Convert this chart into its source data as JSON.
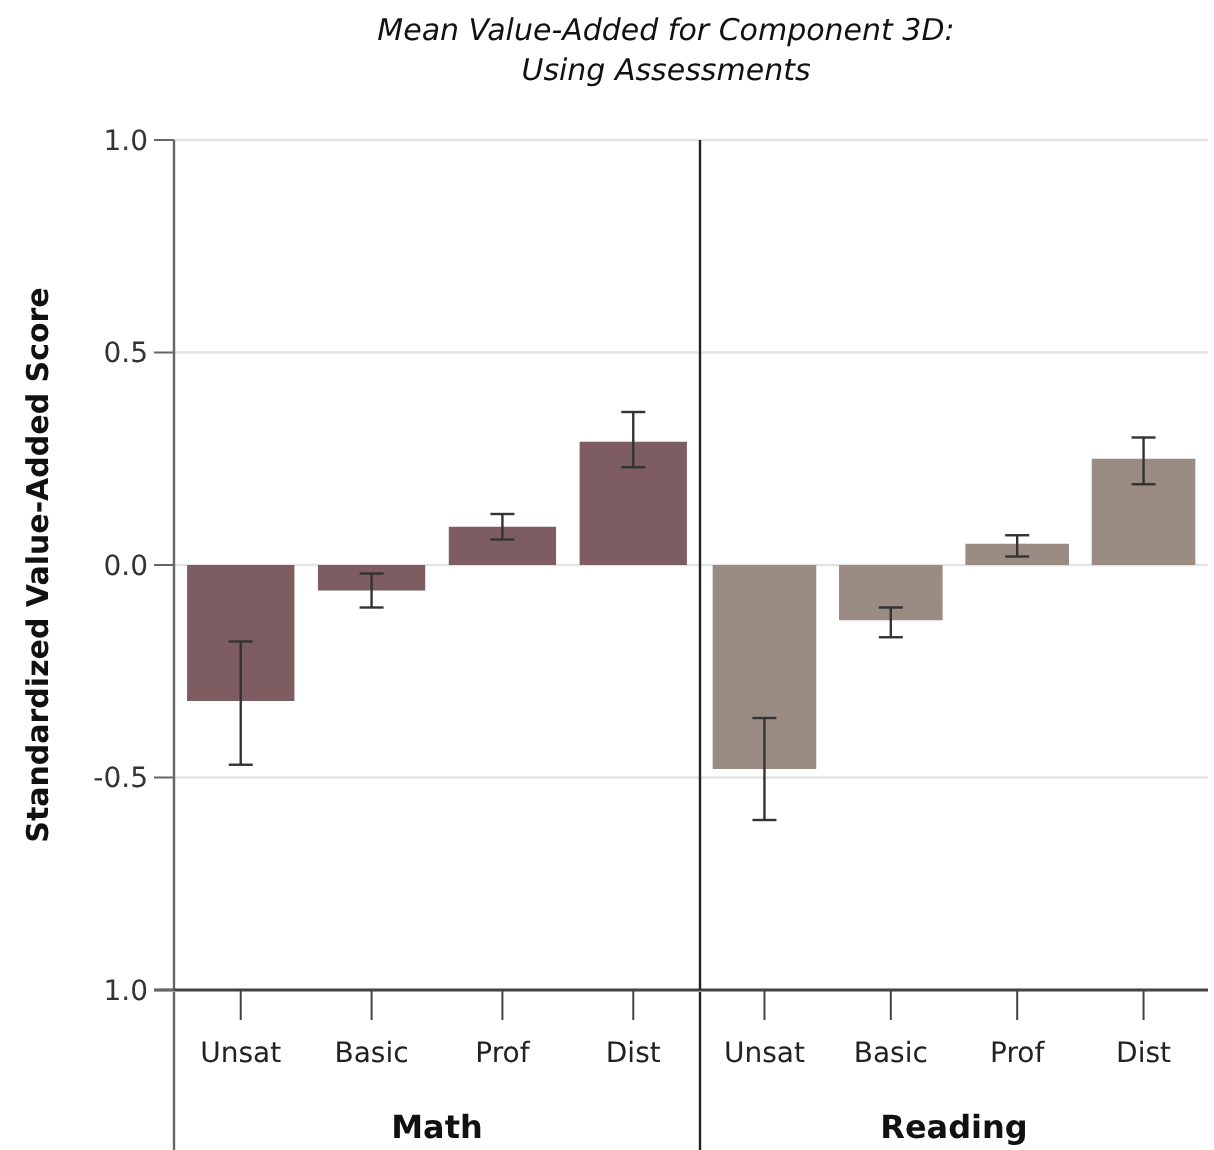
{
  "chart_data": [
    {
      "type": "bar",
      "title": "Mean Value-Added for Component 3D:\nUsing Assessments",
      "ylabel": "Standardized Value-Added Score",
      "xlabel": "Math",
      "categories": [
        "Unsat",
        "Basic",
        "Prof",
        "Dist"
      ],
      "values": [
        -0.32,
        -0.06,
        0.09,
        0.29
      ],
      "errors": [
        [
          -0.47,
          -0.18
        ],
        [
          -0.1,
          -0.02
        ],
        [
          0.06,
          0.12
        ],
        [
          0.23,
          0.36
        ]
      ],
      "color": "#7d5c62",
      "ylim": [
        -1,
        1
      ],
      "yticks": [
        {
          "value": -1,
          "label": "1.0"
        },
        -0.5,
        {
          "value": 0,
          "label": "0.0"
        },
        0.5,
        {
          "value": 1,
          "label": "1.0"
        }
      ],
      "grid": "y"
    },
    {
      "type": "bar",
      "xlabel": "Reading",
      "categories": [
        "Unsat",
        "Basic",
        "Prof",
        "Dist"
      ],
      "values": [
        -0.48,
        -0.13,
        0.05,
        0.25
      ],
      "errors": [
        [
          -0.6,
          -0.36
        ],
        [
          -0.17,
          -0.1
        ],
        [
          0.02,
          0.07
        ],
        [
          0.19,
          0.3
        ]
      ],
      "color": "#9a8c83",
      "ylim": [
        -1,
        1
      ],
      "yticks": [
        -1,
        -0.5,
        0,
        0.5,
        1
      ],
      "grid": "y",
      "tick_labels": "x"
    }
  ]
}
